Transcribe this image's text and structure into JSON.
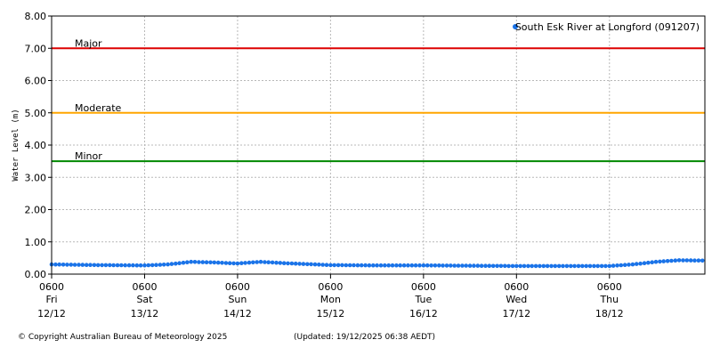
{
  "chart_data": {
    "type": "scatter",
    "ylabel": "Water Level (m)",
    "ylim": [
      0,
      8
    ],
    "yticks": [
      "0.00",
      "1.00",
      "2.00",
      "3.00",
      "4.00",
      "5.00",
      "6.00",
      "7.00",
      "8.00"
    ],
    "xlim": [
      "12/12 06:00",
      "19/12 06:38"
    ],
    "grid": true,
    "legend_position": "top-right",
    "xticks": [
      {
        "time": "0600",
        "day": "Fri",
        "date": "12/12"
      },
      {
        "time": "0600",
        "day": "Sat",
        "date": "13/12"
      },
      {
        "time": "0600",
        "day": "Sun",
        "date": "14/12"
      },
      {
        "time": "0600",
        "day": "Mon",
        "date": "15/12"
      },
      {
        "time": "0600",
        "day": "Tue",
        "date": "16/12"
      },
      {
        "time": "0600",
        "day": "Wed",
        "date": "17/12"
      },
      {
        "time": "0600",
        "day": "Thu",
        "date": "18/12"
      }
    ],
    "thresholds": [
      {
        "label": "Major",
        "value": 7.0,
        "color": "#dd0000"
      },
      {
        "label": "Moderate",
        "value": 5.0,
        "color": "#ffa500"
      },
      {
        "label": "Minor",
        "value": 3.5,
        "color": "#008800"
      }
    ],
    "series": [
      {
        "name": "South Esk River at Longford (091207)",
        "color": "#1a73e8",
        "x": [
          "12/12 06:00",
          "12/12 18:00",
          "13/12 06:00",
          "13/12 12:00",
          "13/12 18:00",
          "14/12 00:00",
          "14/12 06:00",
          "14/12 12:00",
          "14/12 18:00",
          "15/12 06:00",
          "15/12 18:00",
          "16/12 06:00",
          "16/12 18:00",
          "17/12 06:00",
          "17/12 18:00",
          "18/12 06:00",
          "18/12 12:00",
          "18/12 18:00",
          "19/12 00:00",
          "19/12 06:00"
        ],
        "y": [
          0.3,
          0.28,
          0.27,
          0.3,
          0.38,
          0.36,
          0.33,
          0.38,
          0.34,
          0.28,
          0.27,
          0.27,
          0.26,
          0.25,
          0.25,
          0.25,
          0.3,
          0.38,
          0.43,
          0.42
        ]
      }
    ]
  },
  "footer": {
    "copyright": "© Copyright Australian Bureau of Meteorology 2025",
    "updated": "(Updated: 19/12/2025 06:38 AEDT)"
  }
}
